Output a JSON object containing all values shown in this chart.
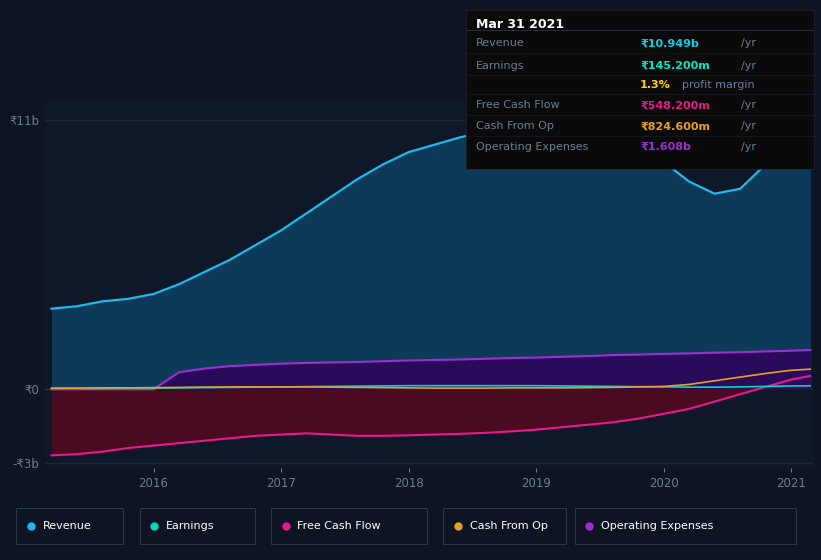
{
  "bg_color": "#0e1421",
  "plot_bg_color": "#0e1829",
  "title_box_bg": "#0a0a0a",
  "title_box_border": "#222233",
  "title": "Mar 31 2021",
  "title_box_rows": [
    {
      "label": "Revenue",
      "value": "₹10.949b",
      "suffix": " /yr",
      "value_color": "#00d4e8"
    },
    {
      "label": "Earnings",
      "value": "₹145.200m",
      "suffix": " /yr",
      "value_color": "#00e8c8"
    },
    {
      "label": "",
      "value": "1.3%",
      "suffix": " profit margin",
      "value_color": "#ffd700"
    },
    {
      "label": "Free Cash Flow",
      "value": "₹548.200m",
      "suffix": " /yr",
      "value_color": "#e8198c"
    },
    {
      "label": "Cash From Op",
      "value": "₹824.600m",
      "suffix": " /yr",
      "value_color": "#e8a020"
    },
    {
      "label": "Operating Expenses",
      "value": "₹1.608b",
      "suffix": " /yr",
      "value_color": "#9b30d0"
    }
  ],
  "ylim": [
    -3200000000.0,
    11800000000.0
  ],
  "ytick_vals": [
    -3000000000.0,
    0,
    11000000000.0
  ],
  "ytick_labels": [
    "-₹3b",
    "₹0",
    "₹11b"
  ],
  "x_years": [
    2015.2,
    2015.4,
    2015.6,
    2015.8,
    2016.0,
    2016.2,
    2016.4,
    2016.6,
    2016.8,
    2017.0,
    2017.2,
    2017.4,
    2017.6,
    2017.8,
    2018.0,
    2018.2,
    2018.4,
    2018.6,
    2018.8,
    2019.0,
    2019.2,
    2019.4,
    2019.6,
    2019.8,
    2020.0,
    2020.2,
    2020.4,
    2020.6,
    2020.8,
    2021.0,
    2021.15
  ],
  "revenue": [
    3300000000.0,
    3400000000.0,
    3600000000.0,
    3700000000.0,
    3900000000.0,
    4300000000.0,
    4800000000.0,
    5300000000.0,
    5900000000.0,
    6500000000.0,
    7200000000.0,
    7900000000.0,
    8600000000.0,
    9200000000.0,
    9700000000.0,
    10000000000.0,
    10300000000.0,
    10550000000.0,
    10700000000.0,
    10750000000.0,
    10700000000.0,
    10500000000.0,
    10200000000.0,
    9800000000.0,
    9300000000.0,
    8500000000.0,
    8000000000.0,
    8200000000.0,
    9200000000.0,
    10600000000.0,
    10950000000.0
  ],
  "earnings": [
    40000000.0,
    40000000.0,
    40000000.0,
    50000000.0,
    50000000.0,
    60000000.0,
    70000000.0,
    80000000.0,
    90000000.0,
    100000000.0,
    110000000.0,
    120000000.0,
    130000000.0,
    140000000.0,
    150000000.0,
    150000000.0,
    150000000.0,
    150000000.0,
    150000000.0,
    150000000.0,
    140000000.0,
    130000000.0,
    120000000.0,
    110000000.0,
    100000000.0,
    90000000.0,
    90000000.0,
    100000000.0,
    120000000.0,
    140000000.0,
    145200000.0
  ],
  "free_cash_flow": [
    -2700000000.0,
    -2650000000.0,
    -2550000000.0,
    -2400000000.0,
    -2300000000.0,
    -2200000000.0,
    -2100000000.0,
    -2000000000.0,
    -1900000000.0,
    -1850000000.0,
    -1800000000.0,
    -1850000000.0,
    -1900000000.0,
    -1900000000.0,
    -1880000000.0,
    -1850000000.0,
    -1820000000.0,
    -1780000000.0,
    -1720000000.0,
    -1650000000.0,
    -1550000000.0,
    -1450000000.0,
    -1350000000.0,
    -1200000000.0,
    -1000000000.0,
    -800000000.0,
    -500000000.0,
    -200000000.0,
    100000000.0,
    400000000.0,
    548200000.0
  ],
  "cash_from_op": [
    50000000.0,
    50000000.0,
    60000000.0,
    60000000.0,
    70000000.0,
    80000000.0,
    90000000.0,
    100000000.0,
    100000000.0,
    100000000.0,
    100000000.0,
    90000000.0,
    80000000.0,
    70000000.0,
    60000000.0,
    50000000.0,
    50000000.0,
    50000000.0,
    60000000.0,
    60000000.0,
    60000000.0,
    70000000.0,
    80000000.0,
    100000000.0,
    120000000.0,
    200000000.0,
    350000000.0,
    500000000.0,
    650000000.0,
    780000000.0,
    824600000.0
  ],
  "op_expenses": [
    0.0,
    0.0,
    0.0,
    0.0,
    0.0,
    700000000.0,
    850000000.0,
    950000000.0,
    1000000000.0,
    1050000000.0,
    1080000000.0,
    1100000000.0,
    1120000000.0,
    1150000000.0,
    1180000000.0,
    1200000000.0,
    1220000000.0,
    1250000000.0,
    1280000000.0,
    1300000000.0,
    1330000000.0,
    1360000000.0,
    1400000000.0,
    1420000000.0,
    1450000000.0,
    1470000000.0,
    1500000000.0,
    1520000000.0,
    1550000000.0,
    1580000000.0,
    1608000000.0
  ],
  "colors": {
    "revenue_line": "#22b8e8",
    "revenue_fill": "#0e3a5a",
    "earnings_line": "#00d8c0",
    "fcf_line": "#e8198c",
    "fcf_fill": "#4a0a20",
    "op_fill": "#2a0a5a",
    "op_line": "#9b30d0",
    "cashop_line": "#e8a020"
  },
  "legend_items": [
    {
      "label": "Revenue",
      "color": "#22b8e8"
    },
    {
      "label": "Earnings",
      "color": "#00d8c0"
    },
    {
      "label": "Free Cash Flow",
      "color": "#e8198c"
    },
    {
      "label": "Cash From Op",
      "color": "#e8a020"
    },
    {
      "label": "Operating Expenses",
      "color": "#9b30d0"
    }
  ],
  "xtick_years": [
    2016,
    2017,
    2018,
    2019,
    2020,
    2021
  ],
  "grid_color": "#1e2e3e",
  "text_color": "#6a7e94",
  "zero_line_color": "#2a3a4a"
}
